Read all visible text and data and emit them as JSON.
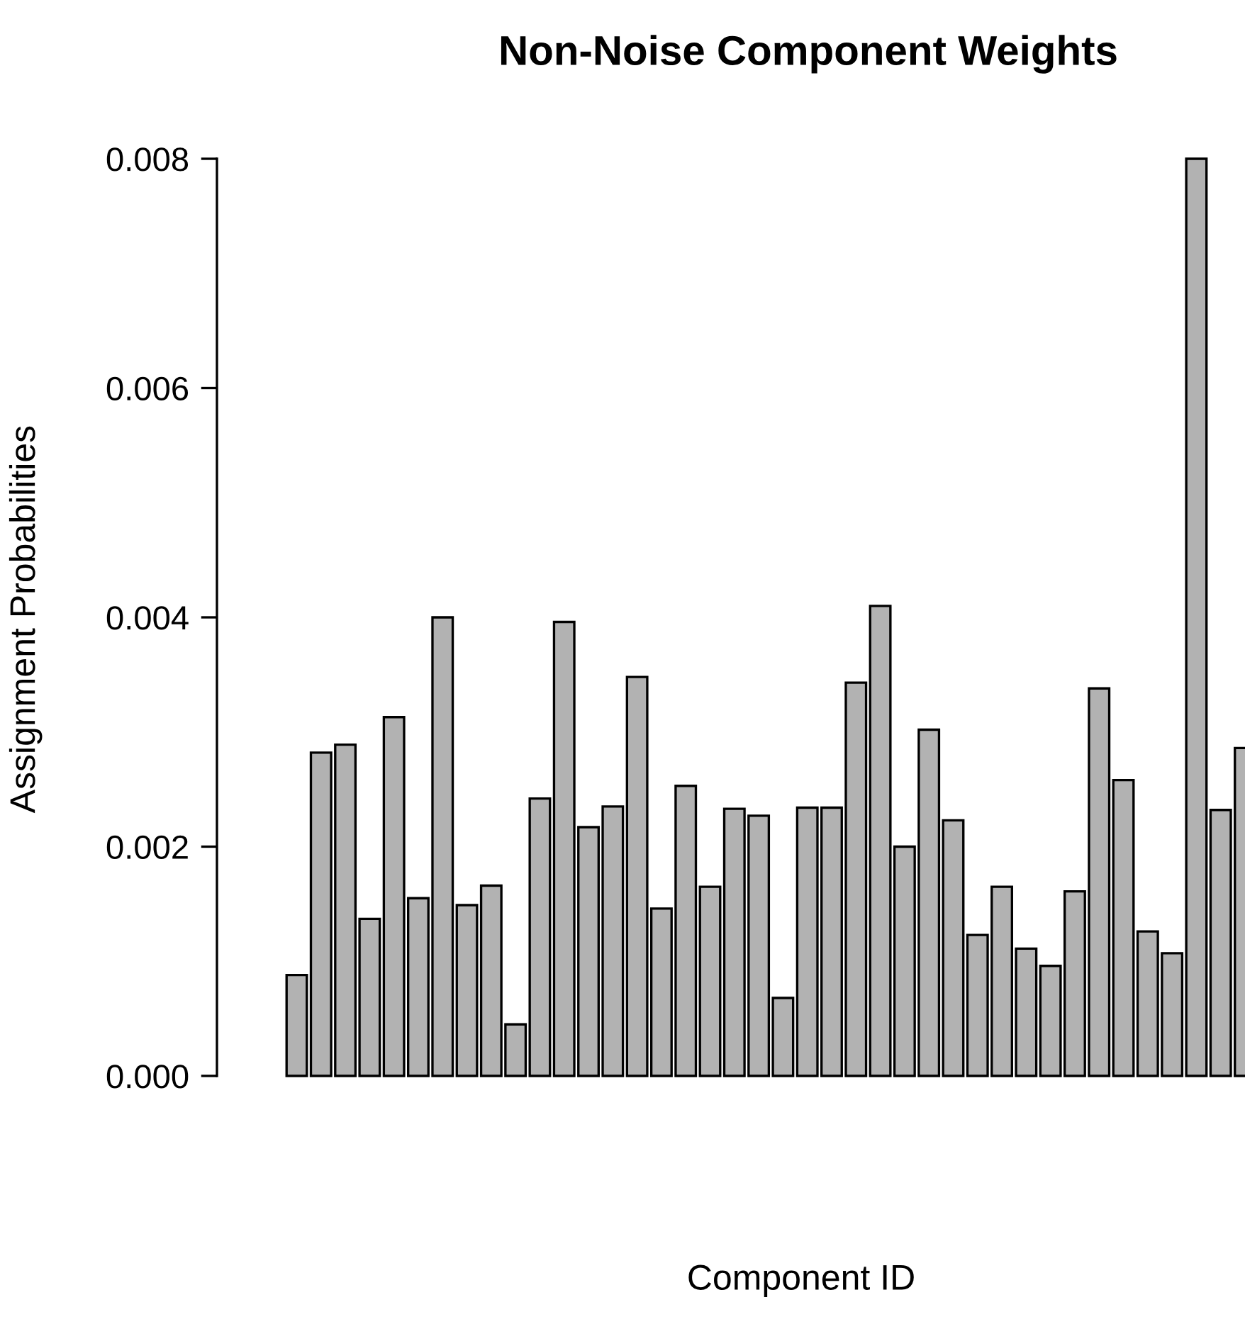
{
  "chart_data": {
    "type": "bar",
    "title": "Non-Noise Component Weights",
    "xlabel": "Component ID",
    "ylabel": "Assignment Probabilities",
    "categories": [
      null,
      null,
      null,
      null,
      null,
      null,
      null,
      null,
      null,
      null,
      null,
      null,
      null,
      null,
      null,
      null,
      null,
      null,
      null,
      null,
      null,
      null,
      null,
      null,
      null,
      null,
      null,
      null,
      null,
      null,
      null,
      null,
      null,
      null,
      null,
      null,
      null,
      null,
      null,
      null
    ],
    "values": [
      0.00088,
      0.00282,
      0.00289,
      0.00137,
      0.00313,
      0.00155,
      0.004,
      0.00149,
      0.00166,
      0.00045,
      0.00242,
      0.00396,
      0.00217,
      0.00235,
      0.00348,
      0.00146,
      0.00253,
      0.00165,
      0.00233,
      0.00227,
      0.00068,
      0.00234,
      0.00234,
      0.00343,
      0.0041,
      0.002,
      0.00302,
      0.00223,
      0.00123,
      0.00165,
      0.00111,
      0.00096,
      0.00161,
      0.00338,
      0.00258,
      0.00126,
      0.00107,
      0.008,
      0.00232,
      0.00286
    ],
    "color": "#b2b2b2",
    "ylim": [
      0,
      0.008
    ],
    "yticks": [
      {
        "value": 0,
        "label": "0.000"
      },
      {
        "value": 0.002,
        "label": "0.002"
      },
      {
        "value": 0.004,
        "label": "0.004"
      },
      {
        "value": 0.006,
        "label": "0.006"
      },
      {
        "value": 0.008,
        "label": "0.008"
      }
    ],
    "tick_labels": "y",
    "grid": false,
    "legend": false
  }
}
